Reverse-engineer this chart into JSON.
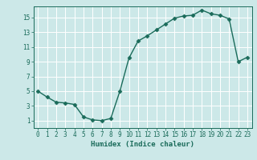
{
  "x": [
    0,
    1,
    2,
    3,
    4,
    5,
    6,
    7,
    8,
    9,
    10,
    11,
    12,
    13,
    14,
    15,
    16,
    17,
    18,
    19,
    20,
    21,
    22,
    23
  ],
  "y": [
    5,
    4.2,
    3.5,
    3.4,
    3.2,
    1.5,
    1.1,
    1.0,
    1.3,
    5.0,
    9.5,
    11.8,
    12.5,
    13.3,
    14.1,
    14.9,
    15.2,
    15.3,
    16.0,
    15.5,
    15.3,
    14.8,
    9.0,
    9.6
  ],
  "xlabel": "Humidex (Indice chaleur)",
  "xlim": [
    -0.5,
    23.5
  ],
  "ylim": [
    0,
    16.5
  ],
  "yticks": [
    1,
    3,
    5,
    7,
    9,
    11,
    13,
    15
  ],
  "xticks": [
    0,
    1,
    2,
    3,
    4,
    5,
    6,
    7,
    8,
    9,
    10,
    11,
    12,
    13,
    14,
    15,
    16,
    17,
    18,
    19,
    20,
    21,
    22,
    23
  ],
  "line_color": "#1a6b5a",
  "marker": "D",
  "marker_size": 2.5,
  "line_width": 1.0,
  "bg_color": "#cce8e8",
  "grid_color": "#ffffff",
  "label_fontsize": 6.5,
  "tick_fontsize": 5.5
}
